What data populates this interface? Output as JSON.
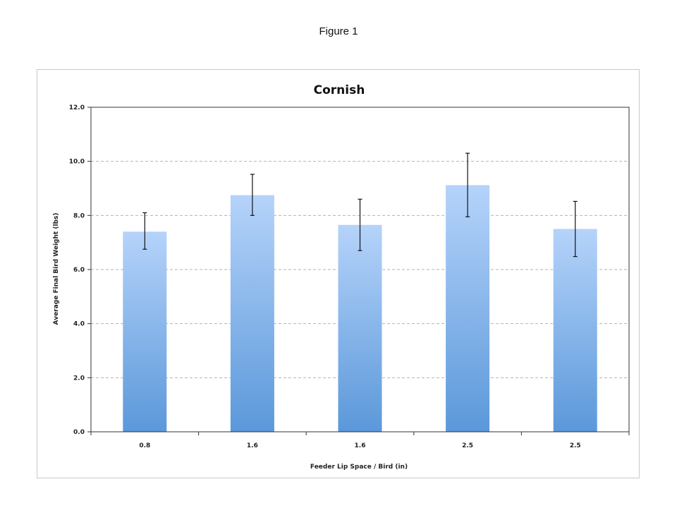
{
  "figure_caption": "Figure 1",
  "colors": {
    "bar_top": "#b5d3fa",
    "bar_bottom": "#5b98da",
    "grid": "#b3b3b3",
    "axis": "#333333",
    "error_bar": "#111111"
  },
  "chart_data": {
    "type": "bar",
    "title": "Cornish",
    "xlabel": "Feeder Lip Space / Bird (in)",
    "ylabel": "Average Final Bird Weight (lbs)",
    "categories": [
      "0.8",
      "1.6",
      "1.6",
      "2.5",
      "2.5"
    ],
    "values": [
      7.4,
      8.75,
      7.65,
      9.12,
      7.5
    ],
    "error_low": [
      6.75,
      8.0,
      6.7,
      7.95,
      6.48
    ],
    "error_high": [
      8.1,
      9.52,
      8.6,
      10.3,
      8.52
    ],
    "ylim": [
      0,
      12
    ],
    "yticks": [
      "0.0",
      "2.0",
      "4.0",
      "6.0",
      "8.0",
      "10.0",
      "12.0"
    ],
    "grid": true,
    "grid_style": "dashed",
    "legend": "none"
  }
}
